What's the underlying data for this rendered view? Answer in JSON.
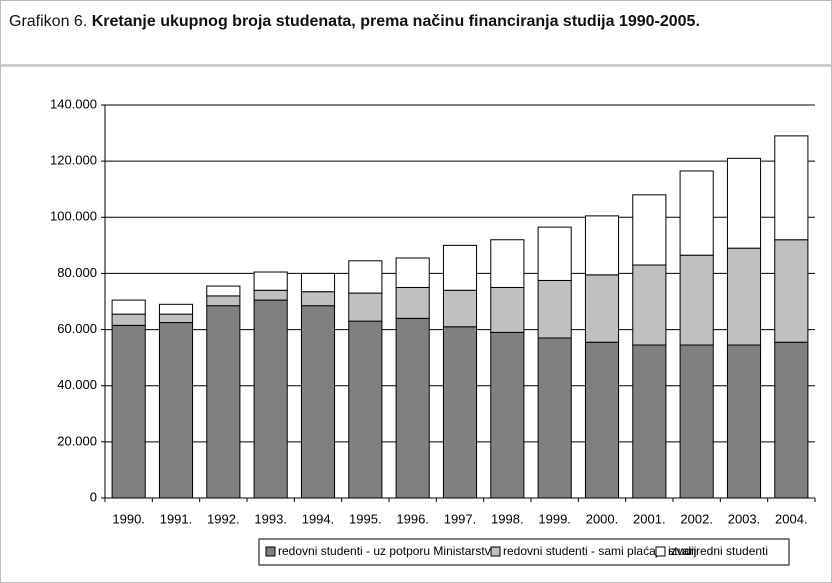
{
  "chart_data": {
    "type": "stacked_bar",
    "title_prefix": "Grafikon 6.",
    "title": "Kretanje ukupnog broja studenata, prema načinu financiranja studija 1990-2005.",
    "categories": [
      "1990.",
      "1991.",
      "1992.",
      "1993.",
      "1994.",
      "1995.",
      "1996.",
      "1997.",
      "1998.",
      "1999.",
      "2000.",
      "2001.",
      "2002.",
      "2003.",
      "2004."
    ],
    "series": [
      {
        "name": "redovni studenti - uz potporu Ministarstva",
        "color": "#808080",
        "values": [
          61500,
          62500,
          68500,
          70500,
          68500,
          63000,
          64000,
          61000,
          59000,
          57000,
          55500,
          54500,
          54500,
          54500,
          55500
        ]
      },
      {
        "name": "redovni studenti - sami plaćaju studij",
        "color": "#c0c0c0",
        "values": [
          4000,
          3000,
          3500,
          3500,
          5000,
          10000,
          11000,
          13000,
          16000,
          20500,
          24000,
          28500,
          32000,
          34500,
          36500
        ]
      },
      {
        "name": "izvanredni studenti",
        "color": "#ffffff",
        "values": [
          5000,
          3500,
          3500,
          6500,
          6500,
          11500,
          10500,
          16000,
          17000,
          19000,
          21000,
          25000,
          30000,
          32000,
          37000
        ]
      }
    ],
    "ylim": [
      0,
      140000
    ],
    "yticks": [
      0,
      {
        "value": 20000,
        "label": "20.000"
      },
      {
        "value": 40000,
        "label": "40.000"
      },
      {
        "value": 60000,
        "label": "60.000"
      },
      {
        "value": 80000,
        "label": "80.000"
      },
      {
        "value": 100000,
        "label": "100.000"
      },
      {
        "value": 120000,
        "label": "120.000"
      },
      {
        "value": 140000,
        "label": "140.000"
      }
    ],
    "grid": true
  }
}
